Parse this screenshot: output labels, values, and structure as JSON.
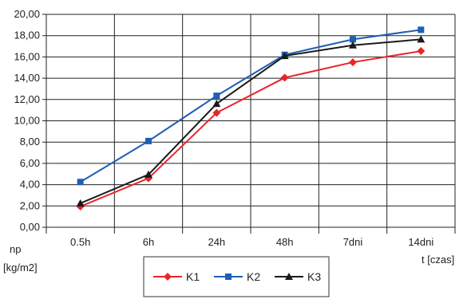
{
  "chart_data": {
    "type": "line",
    "categories": [
      "0.5h",
      "6h",
      "24h",
      "48h",
      "7dni",
      "14dni"
    ],
    "ylabel": [
      "np",
      "[kg/m2]"
    ],
    "xlabel": "t [czas]",
    "ylim": [
      0,
      20
    ],
    "yticks": [
      "0,00",
      "2,00",
      "4,00",
      "6,00",
      "8,00",
      "10,00",
      "12,00",
      "14,00",
      "16,00",
      "18,00",
      "20,00"
    ],
    "grid": true,
    "legend": "bottom",
    "series": [
      {
        "name": "K1",
        "color": "#e8262b",
        "marker": "diamond",
        "values": [
          1.95,
          4.6,
          10.75,
          14.05,
          15.5,
          16.55
        ]
      },
      {
        "name": "K2",
        "color": "#1f5fb4",
        "marker": "square",
        "values": [
          4.25,
          8.1,
          12.35,
          16.2,
          17.65,
          18.55
        ]
      },
      {
        "name": "K3",
        "color": "#1a1a1a",
        "marker": "triangle",
        "values": [
          2.25,
          4.95,
          11.6,
          16.1,
          17.1,
          17.65
        ]
      }
    ]
  }
}
